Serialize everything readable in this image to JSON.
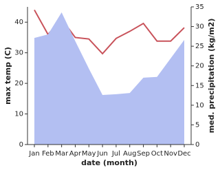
{
  "chart_data": {
    "type": "line-area",
    "x_label": "date (month)",
    "y_label": "max temp (C)",
    "y2_label": "med. precipitation (kg/m2)",
    "categories": [
      "Jan",
      "Feb",
      "Mar",
      "Apr",
      "May",
      "Jun",
      "Jul",
      "Aug",
      "Sep",
      "Oct",
      "Nov",
      "Dec"
    ],
    "ylim": [
      0,
      45
    ],
    "yticks": [
      0,
      10,
      20,
      30,
      40
    ],
    "y2lim": [
      0,
      35
    ],
    "y2ticks": [
      0,
      5,
      10,
      15,
      20,
      25,
      30,
      35
    ],
    "series": [
      {
        "name": "max temp",
        "type": "line",
        "color": "#c8525a",
        "values": [
          44,
          36,
          41,
          35,
          34.5,
          29.7,
          34.7,
          37,
          39.6,
          33.8,
          33.8,
          38.2
        ]
      },
      {
        "name": "precipitation",
        "type": "area",
        "axis": "y2",
        "color": "#b3bff2",
        "values": [
          27.1,
          28,
          33.6,
          26.3,
          19.3,
          12.6,
          12.8,
          13.1,
          17,
          17.2,
          21.9,
          26.6
        ]
      }
    ]
  }
}
